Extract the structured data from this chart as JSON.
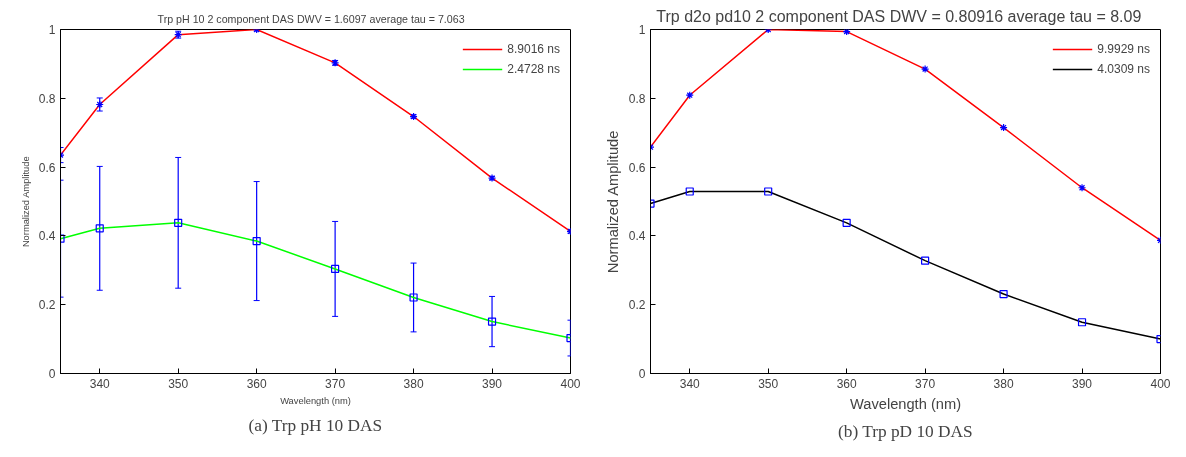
{
  "chart_data": [
    {
      "type": "line",
      "title": "Trp pH 10 2 component DAS DWV = 1.6097    average tau = 7.063",
      "xlabel": "Wavelength (nm)",
      "ylabel": "Normalized Amplitude",
      "x": [
        335,
        340,
        350,
        360,
        370,
        380,
        390,
        400
      ],
      "series": [
        {
          "name": "8.9016 ns",
          "color": "#ff0000",
          "marker": "cross",
          "values": [
            0.635,
            0.782,
            0.985,
            1.0,
            0.903,
            0.747,
            0.568,
            0.413
          ],
          "errors": [
            0.022,
            0.019,
            0.01,
            0.004,
            0.007,
            0.005,
            0.005,
            0.005
          ]
        },
        {
          "name": "2.4728 ns",
          "color": "#00ff00",
          "marker": "square",
          "values": [
            0.392,
            0.422,
            0.438,
            0.385,
            0.304,
            0.221,
            0.151,
            0.103
          ],
          "errors": [
            0.17,
            0.18,
            0.19,
            0.173,
            0.138,
            0.1,
            0.073,
            0.052
          ]
        }
      ],
      "xlim": [
        335,
        400
      ],
      "xticks": [
        340,
        350,
        360,
        370,
        380,
        390,
        400
      ],
      "ylim": [
        0,
        1
      ],
      "yticks": [
        0,
        0.2,
        0.4,
        0.6,
        0.8,
        1
      ],
      "legend": "top right",
      "grid": false,
      "annotations": [
        "(a) Trp pH 10 DAS"
      ]
    },
    {
      "type": "line",
      "title": "Trp d2o pd10 2 component DAS DWV = 0.80916    average tau = 8.09",
      "xlabel": "Wavelength (nm)",
      "ylabel": "Normalized Amplitude",
      "x": [
        335,
        340,
        350,
        360,
        370,
        380,
        390,
        400
      ],
      "series": [
        {
          "name": "9.9929 ns",
          "color": "#ff0000",
          "marker": "cross",
          "values": [
            0.658,
            0.809,
            1.0,
            0.994,
            0.885,
            0.715,
            0.54,
            0.387
          ]
        },
        {
          "name": "4.0309 ns",
          "color": "#000000",
          "marker": "square",
          "values": [
            0.494,
            0.529,
            0.529,
            0.438,
            0.328,
            0.231,
            0.149,
            0.1
          ]
        }
      ],
      "xlim": [
        335,
        400
      ],
      "xticks": [
        340,
        350,
        360,
        370,
        380,
        390,
        400
      ],
      "ylim": [
        0,
        1
      ],
      "yticks": [
        0,
        0.2,
        0.4,
        0.6,
        0.8,
        1
      ],
      "legend": "top right",
      "grid": false,
      "annotations": [
        "(b) Trp pD 10 DAS"
      ]
    }
  ]
}
